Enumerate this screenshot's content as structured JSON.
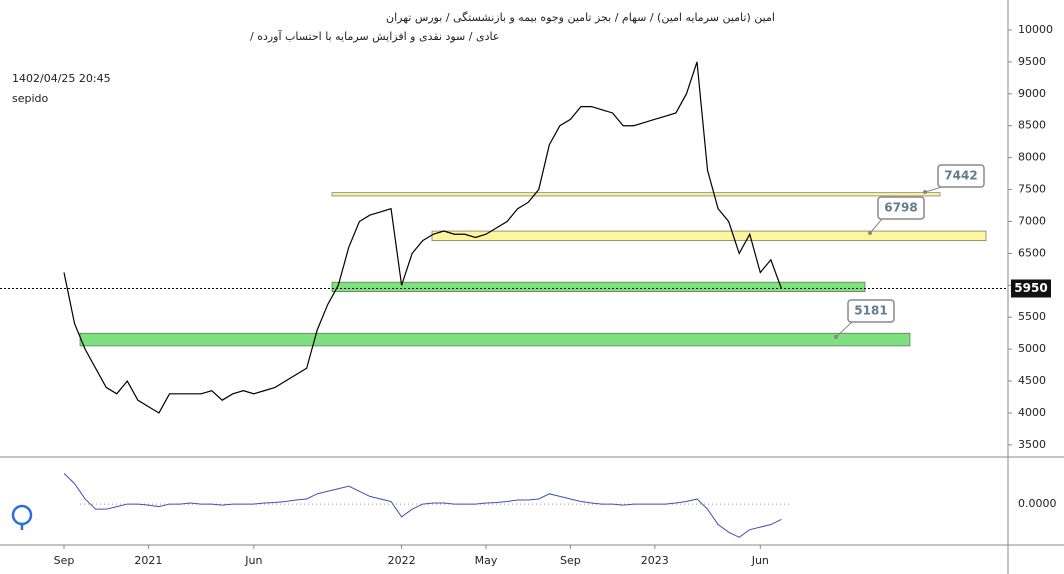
{
  "chart_data": {
    "type": "line",
    "title": "امین (تامین سرمایه امین) / سهام / بجز تامین وجوه بیمه و بازنشستگی / بورس تهران",
    "subtitle": "عادی / سود نقدی و افزایش سرمایه با احتساب آورده /",
    "timestamp": "1402/04/25 20:45",
    "author": "sepido",
    "categories": [
      "Sep",
      null,
      null,
      null,
      null,
      null,
      null,
      null,
      "2021",
      null,
      null,
      null,
      null,
      null,
      null,
      null,
      null,
      null,
      "Jun",
      null,
      null,
      null,
      null,
      null,
      null,
      null,
      null,
      null,
      null,
      null,
      null,
      null,
      "2022",
      null,
      null,
      null,
      null,
      null,
      null,
      null,
      "May",
      null,
      null,
      null,
      null,
      null,
      null,
      null,
      "Sep",
      null,
      null,
      null,
      null,
      null,
      null,
      null,
      "2023",
      null,
      null,
      null,
      null,
      null,
      null,
      null,
      null,
      null,
      "Jun",
      null,
      null
    ],
    "series": [
      {
        "name": "price",
        "color": "#000000",
        "values": [
          6200,
          5400,
          5000,
          4700,
          4400,
          4300,
          4500,
          4200,
          4100,
          4000,
          4300,
          4300,
          4300,
          4300,
          4350,
          4200,
          4300,
          4350,
          4300,
          4350,
          4400,
          4500,
          4600,
          4700,
          5300,
          5700,
          6000,
          6600,
          7000,
          7100,
          7150,
          7200,
          6000,
          6500,
          6700,
          6800,
          6850,
          6800,
          6800,
          6750,
          6800,
          6900,
          7000,
          7200,
          7300,
          7500,
          8200,
          8500,
          8600,
          8800,
          8800,
          8750,
          8700,
          8500,
          8500,
          8550,
          8600,
          8650,
          8700,
          9000,
          9500,
          7800,
          7200,
          7000,
          6500,
          6800,
          6200,
          6400,
          5950
        ]
      }
    ],
    "ylim": [
      3310,
      10470
    ],
    "yticks": [
      3500,
      4000,
      4500,
      5000,
      5500,
      6000,
      6500,
      7000,
      7500,
      8000,
      8500,
      9000,
      9500,
      10000
    ],
    "zones": [
      {
        "from": 7400,
        "to": 7450,
        "color": "#fff59d"
      },
      {
        "from": 6700,
        "to": 6850,
        "color": "#fff59d"
      },
      {
        "from": 5900,
        "to": 6050,
        "color": "#7ee07e"
      },
      {
        "from": 5050,
        "to": 5250,
        "color": "#7ee07e"
      }
    ],
    "callouts": [
      7442,
      6798,
      5181
    ],
    "last_price": 5950,
    "indicator": {
      "values": [
        0.6,
        0.4,
        0.1,
        -0.1,
        -0.1,
        -0.05,
        0,
        0,
        -0.02,
        -0.05,
        0,
        0,
        0.02,
        0,
        0,
        -0.02,
        0,
        0,
        0,
        0.02,
        0.03,
        0.05,
        0.08,
        0.1,
        0.2,
        0.25,
        0.3,
        0.35,
        0.25,
        0.15,
        0.1,
        0.05,
        -0.25,
        -0.1,
        0,
        0.02,
        0.02,
        0,
        0,
        0,
        0.02,
        0.03,
        0.05,
        0.08,
        0.08,
        0.1,
        0.2,
        0.15,
        0.1,
        0.05,
        0.02,
        0,
        0,
        -0.02,
        0,
        0,
        0,
        0,
        0.02,
        0.05,
        0.1,
        -0.1,
        -0.4,
        -0.55,
        -0.65,
        -0.5,
        -0.45,
        -0.4,
        -0.3
      ],
      "color": "#3f51b5",
      "ylim": [
        -0.8,
        0.92
      ],
      "yticks": [
        {
          "value": 0,
          "label": "0.0000"
        }
      ]
    }
  }
}
